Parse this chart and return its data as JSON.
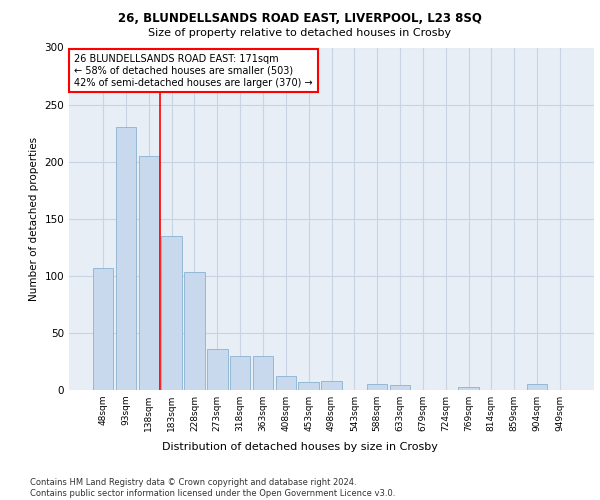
{
  "title_line1": "26, BLUNDELLSANDS ROAD EAST, LIVERPOOL, L23 8SQ",
  "title_line2": "Size of property relative to detached houses in Crosby",
  "xlabel": "Distribution of detached houses by size in Crosby",
  "ylabel": "Number of detached properties",
  "bar_labels": [
    "48sqm",
    "93sqm",
    "138sqm",
    "183sqm",
    "228sqm",
    "273sqm",
    "318sqm",
    "363sqm",
    "408sqm",
    "453sqm",
    "498sqm",
    "543sqm",
    "588sqm",
    "633sqm",
    "679sqm",
    "724sqm",
    "769sqm",
    "814sqm",
    "859sqm",
    "904sqm",
    "949sqm"
  ],
  "bar_values": [
    107,
    230,
    205,
    135,
    103,
    36,
    30,
    30,
    12,
    7,
    8,
    0,
    5,
    4,
    0,
    0,
    3,
    0,
    0,
    5,
    0
  ],
  "bar_color": "#c9d9ed",
  "bar_edge_color": "#7aa8cc",
  "grid_color": "#c8d4e3",
  "background_color": "#e8eef5",
  "property_line_x": 2.5,
  "annotation_text": "26 BLUNDELLSANDS ROAD EAST: 171sqm\n← 58% of detached houses are smaller (503)\n42% of semi-detached houses are larger (370) →",
  "annotation_box_color": "white",
  "annotation_box_edge": "red",
  "property_line_color": "red",
  "footnote": "Contains HM Land Registry data © Crown copyright and database right 2024.\nContains public sector information licensed under the Open Government Licence v3.0.",
  "ylim": [
    0,
    300
  ],
  "yticks": [
    0,
    50,
    100,
    150,
    200,
    250,
    300
  ]
}
